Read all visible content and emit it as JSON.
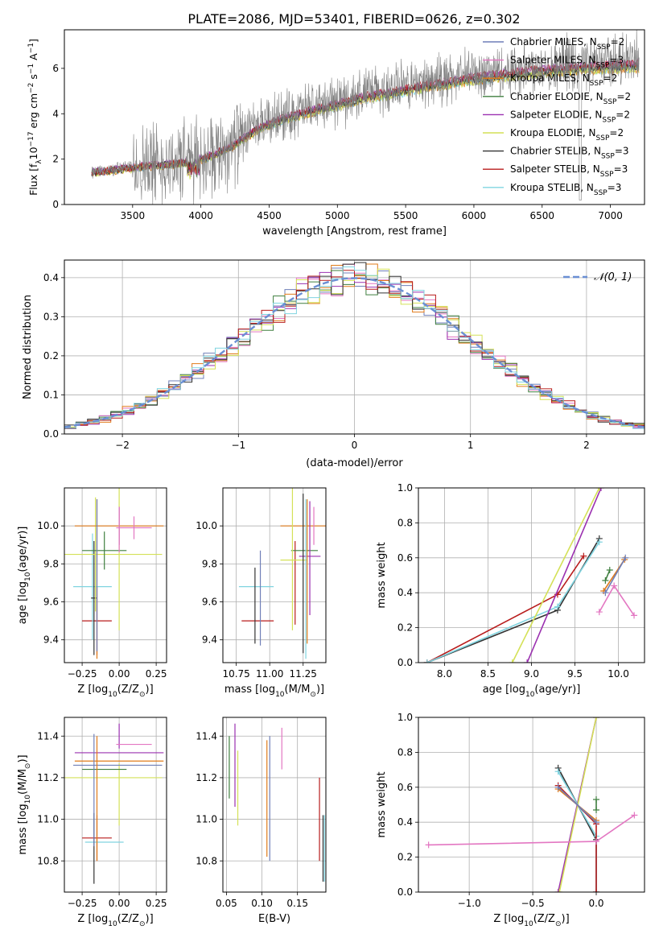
{
  "figure_title": "PLATE=2086, MJD=53401, FIBERID=0626, z=0.302",
  "legend_entries": [
    {
      "imf": "Chabrier",
      "lib": "MILES",
      "nssp": "2",
      "color": "#6f7fb8"
    },
    {
      "imf": "Salpeter",
      "lib": "MILES",
      "nssp": "3",
      "color": "#e377c2"
    },
    {
      "imf": "Kroupa",
      "lib": "MILES",
      "nssp": "2",
      "color": "#e07b1a"
    },
    {
      "imf": "Chabrier",
      "lib": "ELODIE",
      "nssp": "2",
      "color": "#3f7f3f"
    },
    {
      "imf": "Salpeter",
      "lib": "ELODIE",
      "nssp": "2",
      "color": "#9b30b0"
    },
    {
      "imf": "Kroupa",
      "lib": "ELODIE",
      "nssp": "2",
      "color": "#d4e157"
    },
    {
      "imf": "Chabrier",
      "lib": "STELIB",
      "nssp": "3",
      "color": "#333333"
    },
    {
      "imf": "Salpeter",
      "lib": "STELIB",
      "nssp": "3",
      "color": "#b81c1c"
    },
    {
      "imf": "Kroupa",
      "lib": "STELIB",
      "nssp": "3",
      "color": "#80d4e0"
    }
  ],
  "nssp_label": "N",
  "nssp_sub": "SSP",
  "chart_data": [
    {
      "id": "spectrum",
      "type": "line",
      "xlabel": "wavelength [Angstrom, rest frame]",
      "ylabel": "Flux [f",
      "ylabel_sub": "λ",
      "ylabel_rest": "10",
      "ylabel_exp": "−17",
      "ylabel_units": " erg cm",
      "ylabel_exp2": "−2",
      "ylabel_units2": " s",
      "ylabel_exp3": "−1",
      "ylabel_units3": " A",
      "ylabel_exp4": "−1",
      "ylabel_close": "]",
      "xlim": [
        3000,
        7250
      ],
      "ylim": [
        0,
        7.7
      ],
      "xticks": [
        "3500",
        "4000",
        "4500",
        "5000",
        "5500",
        "6000",
        "6500",
        "7000"
      ],
      "xtick_values": [
        3500,
        4000,
        4500,
        5000,
        5500,
        6000,
        6500,
        7000
      ],
      "yticks": [
        "0",
        "2",
        "4",
        "6"
      ],
      "ytick_values": [
        0,
        2,
        4,
        6
      ],
      "x_start": 3200,
      "x_end": 7210,
      "data_color": "#808080",
      "continuum": {
        "x": [
          3200,
          3400,
          3600,
          3800,
          4000,
          4200,
          4400,
          4600,
          4800,
          5000,
          5200,
          5400,
          5600,
          5800,
          6000,
          6200,
          6400,
          6600,
          6800,
          7000,
          7200
        ],
        "y": [
          1.45,
          1.6,
          1.75,
          1.85,
          2.05,
          2.55,
          3.4,
          3.9,
          4.25,
          4.55,
          4.9,
          5.1,
          5.35,
          5.55,
          5.75,
          5.9,
          6.05,
          6.15,
          6.25,
          6.3,
          6.35
        ]
      }
    },
    {
      "id": "residuals",
      "type": "step",
      "xlabel": "(data-model)/error",
      "ylabel": "Normed distribution",
      "xlim": [
        -2.5,
        2.5
      ],
      "ylim": [
        0,
        0.445
      ],
      "xticks": [
        "−2",
        "−1",
        "0",
        "1",
        "2"
      ],
      "xtick_values": [
        -2,
        -1,
        0,
        1,
        2
      ],
      "yticks": [
        "0.0",
        "0.1",
        "0.2",
        "0.3",
        "0.4"
      ],
      "ytick_values": [
        0,
        0.1,
        0.2,
        0.3,
        0.4
      ],
      "grid": true,
      "bin_width": 0.1,
      "gaussian_label": "𝒩(0, 1)",
      "gaussian_color": "#6a8fd4"
    },
    {
      "id": "z-age",
      "type": "errorbar",
      "xlabel": "Z [log",
      "xlabel_sub": "10",
      "xlabel_rest": "(Z/Z",
      "xlabel_sub2": "⊙",
      "xlabel_close": ")]",
      "ylabel": "age  [log",
      "ylabel_sub": "10",
      "ylabel_rest": "(age/yr)]",
      "xlim": [
        -0.37,
        0.32
      ],
      "ylim": [
        9.28,
        10.2
      ],
      "xticks": [
        "−0.25",
        "0.00",
        "0.25"
      ],
      "xtick_values": [
        -0.25,
        0,
        0.25
      ],
      "yticks": [
        "9.4",
        "9.6",
        "9.8",
        "10.0"
      ],
      "ytick_values": [
        9.4,
        9.6,
        9.8,
        10.0
      ],
      "points": [
        {
          "x": -0.15,
          "y": 9.5,
          "xe": 0.1,
          "ye": 0.18,
          "c": 7
        },
        {
          "x": -0.18,
          "y": 9.68,
          "xe": 0.13,
          "ye": 0.28,
          "c": 8
        },
        {
          "x": -0.17,
          "y": 9.62,
          "xe": 0.02,
          "ye": 0.3,
          "c": 6
        },
        {
          "x": -0.16,
          "y": 9.85,
          "xe": 0.45,
          "ye": 0.3,
          "c": 5
        },
        {
          "x": 0.0,
          "y": 9.85,
          "xe": 0.0,
          "ye": 0.4,
          "c": 5
        },
        {
          "x": -0.1,
          "y": 9.87,
          "xe": 0.15,
          "ye": 0.1,
          "c": 3
        },
        {
          "x": 0.0,
          "y": 10.0,
          "xe": 0.0,
          "ye": 0.1,
          "c": 4
        },
        {
          "x": 0.0,
          "y": 10.0,
          "xe": 0.3,
          "ye": 0.0,
          "c": 2
        },
        {
          "x": 0.1,
          "y": 9.99,
          "xe": 0.12,
          "ye": 0.06,
          "c": 1
        },
        {
          "x": 0.0,
          "y": 9.98,
          "xe": 0.0,
          "ye": 0.12,
          "c": 1
        },
        {
          "x": -0.15,
          "y": 9.72,
          "xe": 0.0,
          "ye": 0.42,
          "c": 2
        },
        {
          "x": -0.15,
          "y": 9.74,
          "xe": 0.0,
          "ye": 0.4,
          "c": 0
        }
      ]
    },
    {
      "id": "mass-age",
      "type": "errorbar",
      "xlabel": "mass [log",
      "xlabel_sub": "10",
      "xlabel_rest": "(M/M",
      "xlabel_sub2": "⊙",
      "xlabel_close": ")]",
      "xlim": [
        10.65,
        11.42
      ],
      "ylim": [
        9.28,
        10.2
      ],
      "xticks": [
        "10.75",
        "11.00",
        "11.25"
      ],
      "xtick_values": [
        10.75,
        11.0,
        11.25
      ],
      "yticks": [
        "9.4",
        "9.6",
        "9.8",
        "10.0"
      ],
      "ytick_values": [
        9.4,
        9.6,
        9.8,
        10.0
      ],
      "points": [
        {
          "x": 10.91,
          "y": 9.5,
          "xe": 0.12,
          "ye": 0.0,
          "c": 7
        },
        {
          "x": 10.9,
          "y": 9.68,
          "xe": 0.13,
          "ye": 0.0,
          "c": 8
        },
        {
          "x": 10.89,
          "y": 9.58,
          "xe": 0.0,
          "ye": 0.2,
          "c": 6
        },
        {
          "x": 10.93,
          "y": 9.62,
          "xe": 0.0,
          "ye": 0.25,
          "c": 0
        },
        {
          "x": 11.19,
          "y": 9.7,
          "xe": 0.0,
          "ye": 0.22,
          "c": 7
        },
        {
          "x": 11.18,
          "y": 9.82,
          "xe": 0.1,
          "ye": 0.0,
          "c": 5
        },
        {
          "x": 11.26,
          "y": 9.87,
          "xe": 0.1,
          "ye": 0.0,
          "c": 3
        },
        {
          "x": 11.28,
          "y": 10.0,
          "xe": 0.2,
          "ye": 0.0,
          "c": 2
        },
        {
          "x": 11.3,
          "y": 9.84,
          "xe": 0.08,
          "ye": 0.0,
          "c": 4
        },
        {
          "x": 11.3,
          "y": 9.83,
          "xe": 0.0,
          "ye": 0.3,
          "c": 4
        },
        {
          "x": 11.17,
          "y": 9.85,
          "xe": 0.0,
          "ye": 0.4,
          "c": 5
        },
        {
          "x": 11.25,
          "y": 9.75,
          "xe": 0.0,
          "ye": 0.42,
          "c": 6
        },
        {
          "x": 11.27,
          "y": 9.72,
          "xe": 0.0,
          "ye": 0.42,
          "c": 8
        },
        {
          "x": 11.28,
          "y": 9.76,
          "xe": 0.0,
          "ye": 0.38,
          "c": 2
        },
        {
          "x": 11.33,
          "y": 10.0,
          "xe": 0.0,
          "ye": 0.1,
          "c": 1
        }
      ]
    },
    {
      "id": "age-weight",
      "type": "line",
      "xlabel": "age  [log",
      "xlabel_sub": "10",
      "xlabel_rest": "(age/yr)]",
      "ylabel": "mass weight",
      "xlim": [
        7.7,
        10.3
      ],
      "ylim": [
        0,
        1
      ],
      "xticks": [
        "8.0",
        "8.5",
        "9.0",
        "9.5",
        "10.0"
      ],
      "xtick_values": [
        8.0,
        8.5,
        9.0,
        9.5,
        10.0
      ],
      "yticks": [
        "0.0",
        "0.2",
        "0.4",
        "0.6",
        "0.8",
        "1.0"
      ],
      "ytick_values": [
        0,
        0.2,
        0.4,
        0.6,
        0.8,
        1.0
      ],
      "grid": true,
      "series": [
        {
          "c": 6,
          "x": [
            7.8,
            9.3,
            9.78
          ],
          "y": [
            0.0,
            0.3,
            0.71
          ]
        },
        {
          "c": 7,
          "x": [
            7.8,
            9.3,
            9.6
          ],
          "y": [
            0.0,
            0.39,
            0.61
          ]
        },
        {
          "c": 8,
          "x": [
            7.8,
            9.3,
            9.78
          ],
          "y": [
            0.0,
            0.32,
            0.69
          ]
        },
        {
          "c": 4,
          "x": [
            8.95,
            9.8
          ],
          "y": [
            0.0,
            1.0
          ]
        },
        {
          "c": 5,
          "x": [
            8.78,
            9.78
          ],
          "y": [
            0.0,
            1.0
          ]
        },
        {
          "c": 3,
          "x": [
            9.85,
            9.9
          ],
          "y": [
            0.47,
            0.53
          ]
        },
        {
          "c": 2,
          "x": [
            9.83,
            10.07
          ],
          "y": [
            0.41,
            0.59
          ]
        },
        {
          "c": 0,
          "x": [
            9.85,
            10.08
          ],
          "y": [
            0.4,
            0.6
          ]
        },
        {
          "c": 1,
          "x": [
            9.78,
            9.95,
            10.18
          ],
          "y": [
            0.29,
            0.44,
            0.27
          ]
        }
      ]
    },
    {
      "id": "z-mass",
      "type": "errorbar",
      "xlabel": "Z [log",
      "xlabel_sub": "10",
      "xlabel_rest": "(Z/Z",
      "xlabel_sub2": "⊙",
      "xlabel_close": ")]",
      "ylabel": "mass [log",
      "ylabel_sub": "10",
      "ylabel_rest": "(M/M",
      "ylabel_sub2": "⊙",
      "ylabel_close": ")]",
      "xlim": [
        -0.37,
        0.32
      ],
      "ylim": [
        10.65,
        11.49
      ],
      "xticks": [
        "−0.25",
        "0.00",
        "0.25"
      ],
      "xtick_values": [
        -0.25,
        0,
        0.25
      ],
      "yticks": [
        "10.8",
        "11.0",
        "11.2",
        "11.4"
      ],
      "ytick_values": [
        10.8,
        11.0,
        11.2,
        11.4
      ],
      "points": [
        {
          "x": -0.15,
          "y": 10.91,
          "xe": 0.1,
          "ye": 0.0,
          "c": 7
        },
        {
          "x": -0.15,
          "y": 10.91,
          "xe": 0.0,
          "ye": 0.11,
          "c": 7
        },
        {
          "x": -0.1,
          "y": 10.89,
          "xe": 0.13,
          "ye": 0.0,
          "c": 8
        },
        {
          "x": -0.17,
          "y": 10.86,
          "xe": 0.0,
          "ye": 0.17,
          "c": 6
        },
        {
          "x": -0.16,
          "y": 11.2,
          "xe": 0.45,
          "ye": 0.0,
          "c": 5
        },
        {
          "x": 0.0,
          "y": 11.12,
          "xe": 0.0,
          "ye": 0.15,
          "c": 5
        },
        {
          "x": -0.1,
          "y": 11.24,
          "xe": 0.15,
          "ye": 0.0,
          "c": 3
        },
        {
          "x": 0.0,
          "y": 11.32,
          "xe": 0.3,
          "ye": 0.0,
          "c": 4
        },
        {
          "x": 0.0,
          "y": 11.4,
          "xe": 0.0,
          "ye": 0.06,
          "c": 4
        },
        {
          "x": 0.0,
          "y": 11.28,
          "xe": 0.3,
          "ye": 0.0,
          "c": 2
        },
        {
          "x": -0.01,
          "y": 11.26,
          "xe": 0.3,
          "ye": 0.0,
          "c": 0
        },
        {
          "x": 0.1,
          "y": 11.36,
          "xe": 0.12,
          "ye": 0.0,
          "c": 1
        },
        {
          "x": -0.15,
          "y": 11.1,
          "xe": 0.0,
          "ye": 0.3,
          "c": 2
        },
        {
          "x": -0.17,
          "y": 11.14,
          "xe": 0.0,
          "ye": 0.27,
          "c": 0
        }
      ]
    },
    {
      "id": "ebv-mass",
      "type": "errorbar",
      "xlabel": "E(B-V)",
      "xlim": [
        0.045,
        0.19
      ],
      "ylim": [
        10.65,
        11.49
      ],
      "xticks": [
        "0.05",
        "0.10",
        "0.15"
      ],
      "xtick_values": [
        0.05,
        0.1,
        0.15
      ],
      "yticks": [
        "10.8",
        "11.0",
        "11.2",
        "11.4"
      ],
      "ytick_values": [
        10.8,
        11.0,
        11.2,
        11.4
      ],
      "points": [
        {
          "x": 0.054,
          "y": 11.25,
          "xe": 0,
          "ye": 0.15,
          "c": 3
        },
        {
          "x": 0.062,
          "y": 11.26,
          "xe": 0,
          "ye": 0.2,
          "c": 4
        },
        {
          "x": 0.066,
          "y": 11.15,
          "xe": 0,
          "ye": 0.18,
          "c": 5
        },
        {
          "x": 0.107,
          "y": 11.1,
          "xe": 0,
          "ye": 0.28,
          "c": 2
        },
        {
          "x": 0.111,
          "y": 11.1,
          "xe": 0,
          "ye": 0.3,
          "c": 0
        },
        {
          "x": 0.128,
          "y": 11.34,
          "xe": 0,
          "ye": 0.1,
          "c": 1
        },
        {
          "x": 0.181,
          "y": 11.0,
          "xe": 0,
          "ye": 0.2,
          "c": 7
        },
        {
          "x": 0.186,
          "y": 10.86,
          "xe": 0,
          "ye": 0.16,
          "c": 6
        },
        {
          "x": 0.188,
          "y": 10.86,
          "xe": 0,
          "ye": 0.16,
          "c": 8
        }
      ]
    },
    {
      "id": "z-weight",
      "type": "line",
      "xlabel": "Z [log",
      "xlabel_sub": "10",
      "xlabel_rest": "(Z/Z",
      "xlabel_sub2": "⊙",
      "xlabel_close": ")]",
      "ylabel": "mass weight",
      "xlim": [
        -1.4,
        0.38
      ],
      "ylim": [
        0,
        1
      ],
      "xticks": [
        "−1.0",
        "−0.5",
        "0.0"
      ],
      "xtick_values": [
        -1.0,
        -0.5,
        0.0
      ],
      "yticks": [
        "0.0",
        "0.2",
        "0.4",
        "0.6",
        "0.8",
        "1.0"
      ],
      "ytick_values": [
        0,
        0.2,
        0.4,
        0.6,
        0.8,
        1.0
      ],
      "grid": true,
      "series": [
        {
          "c": 4,
          "x": [
            -0.3,
            0.0
          ],
          "y": [
            0.0,
            1.0
          ]
        },
        {
          "c": 5,
          "x": [
            -0.29,
            0.0
          ],
          "y": [
            0.0,
            1.0
          ]
        },
        {
          "c": 3,
          "x": [
            0.0,
            0.0
          ],
          "y": [
            0.47,
            0.53
          ]
        },
        {
          "c": 6,
          "x": [
            -0.3,
            0.0,
            0.0
          ],
          "y": [
            0.71,
            0.3,
            0.0
          ]
        },
        {
          "c": 8,
          "x": [
            -0.3,
            0.0,
            0.0
          ],
          "y": [
            0.69,
            0.32,
            0.0
          ]
        },
        {
          "c": 7,
          "x": [
            -0.3,
            0.0,
            0.0
          ],
          "y": [
            0.61,
            0.39,
            0.0
          ]
        },
        {
          "c": 2,
          "x": [
            -0.3,
            0.0
          ],
          "y": [
            0.59,
            0.41
          ]
        },
        {
          "c": 0,
          "x": [
            -0.3,
            0.0
          ],
          "y": [
            0.6,
            0.4
          ]
        },
        {
          "c": 1,
          "x": [
            -1.32,
            0.0,
            0.3
          ],
          "y": [
            0.27,
            0.29,
            0.44
          ]
        }
      ]
    }
  ]
}
